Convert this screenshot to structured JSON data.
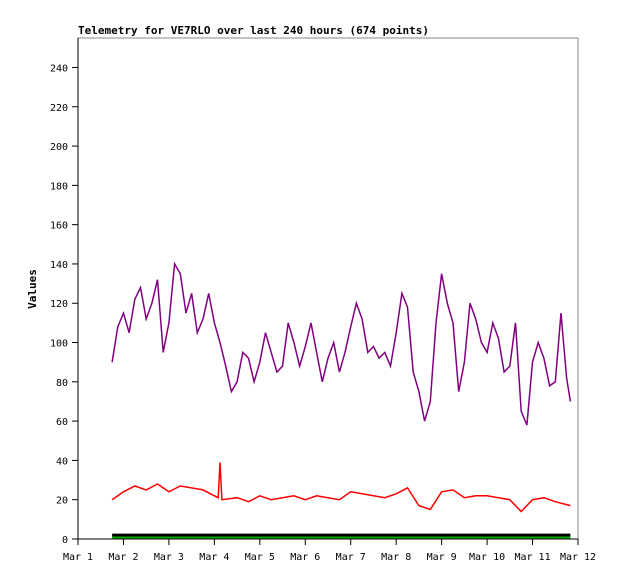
{
  "chart_data": {
    "type": "line",
    "title": "Telemetry for VE7RLO over last 240 hours (674 points)",
    "xlabel": "",
    "ylabel": "Values",
    "xlim": [
      "Mar 1 00:00",
      "Mar 12 00:00"
    ],
    "ylim": [
      0,
      255
    ],
    "x_ticks": [
      "Mar 1",
      "Mar 2",
      "Mar 3",
      "Mar 4",
      "Mar 5",
      "Mar 6",
      "Mar 7",
      "Mar 8",
      "Mar 9",
      "Mar 10",
      "Mar 11",
      "Mar 12"
    ],
    "y_ticks": [
      0,
      20,
      40,
      60,
      80,
      100,
      120,
      140,
      160,
      180,
      200,
      220,
      240
    ],
    "grid": false,
    "legend": "none",
    "series": [
      {
        "color": "#800080",
        "points": [
          [
            "Mar 1 18:00",
            90
          ],
          [
            "Mar 1 21:00",
            108
          ],
          [
            "Mar 2 00:00",
            115
          ],
          [
            "Mar 2 03:00",
            105
          ],
          [
            "Mar 2 06:00",
            122
          ],
          [
            "Mar 2 09:00",
            128
          ],
          [
            "Mar 2 12:00",
            112
          ],
          [
            "Mar 2 15:00",
            120
          ],
          [
            "Mar 2 18:00",
            132
          ],
          [
            "Mar 2 21:00",
            95
          ],
          [
            "Mar 3 00:00",
            110
          ],
          [
            "Mar 3 03:00",
            140
          ],
          [
            "Mar 3 06:00",
            135
          ],
          [
            "Mar 3 09:00",
            115
          ],
          [
            "Mar 3 12:00",
            125
          ],
          [
            "Mar 3 15:00",
            105
          ],
          [
            "Mar 3 18:00",
            112
          ],
          [
            "Mar 3 21:00",
            125
          ],
          [
            "Mar 4 00:00",
            110
          ],
          [
            "Mar 4 03:00",
            100
          ],
          [
            "Mar 4 06:00",
            88
          ],
          [
            "Mar 4 09:00",
            75
          ],
          [
            "Mar 4 12:00",
            80
          ],
          [
            "Mar 4 15:00",
            95
          ],
          [
            "Mar 4 18:00",
            92
          ],
          [
            "Mar 4 21:00",
            80
          ],
          [
            "Mar 5 00:00",
            90
          ],
          [
            "Mar 5 03:00",
            105
          ],
          [
            "Mar 5 06:00",
            95
          ],
          [
            "Mar 5 09:00",
            85
          ],
          [
            "Mar 5 12:00",
            88
          ],
          [
            "Mar 5 15:00",
            110
          ],
          [
            "Mar 5 18:00",
            100
          ],
          [
            "Mar 5 21:00",
            88
          ],
          [
            "Mar 6 00:00",
            98
          ],
          [
            "Mar 6 03:00",
            110
          ],
          [
            "Mar 6 06:00",
            95
          ],
          [
            "Mar 6 09:00",
            80
          ],
          [
            "Mar 6 12:00",
            92
          ],
          [
            "Mar 6 15:00",
            100
          ],
          [
            "Mar 6 18:00",
            85
          ],
          [
            "Mar 6 21:00",
            95
          ],
          [
            "Mar 7 00:00",
            108
          ],
          [
            "Mar 7 03:00",
            120
          ],
          [
            "Mar 7 06:00",
            112
          ],
          [
            "Mar 7 09:00",
            95
          ],
          [
            "Mar 7 12:00",
            98
          ],
          [
            "Mar 7 15:00",
            92
          ],
          [
            "Mar 7 18:00",
            95
          ],
          [
            "Mar 7 21:00",
            88
          ],
          [
            "Mar 8 00:00",
            105
          ],
          [
            "Mar 8 03:00",
            125
          ],
          [
            "Mar 8 06:00",
            118
          ],
          [
            "Mar 8 09:00",
            85
          ],
          [
            "Mar 8 12:00",
            75
          ],
          [
            "Mar 8 15:00",
            60
          ],
          [
            "Mar 8 18:00",
            70
          ],
          [
            "Mar 8 21:00",
            110
          ],
          [
            "Mar 9 00:00",
            135
          ],
          [
            "Mar 9 03:00",
            120
          ],
          [
            "Mar 9 06:00",
            110
          ],
          [
            "Mar 9 09:00",
            75
          ],
          [
            "Mar 9 12:00",
            90
          ],
          [
            "Mar 9 15:00",
            120
          ],
          [
            "Mar 9 18:00",
            112
          ],
          [
            "Mar 9 21:00",
            100
          ],
          [
            "Mar 10 00:00",
            95
          ],
          [
            "Mar 10 03:00",
            110
          ],
          [
            "Mar 10 06:00",
            102
          ],
          [
            "Mar 10 09:00",
            85
          ],
          [
            "Mar 10 12:00",
            88
          ],
          [
            "Mar 10 15:00",
            110
          ],
          [
            "Mar 10 18:00",
            65
          ],
          [
            "Mar 10 21:00",
            58
          ],
          [
            "Mar 11 00:00",
            90
          ],
          [
            "Mar 11 03:00",
            100
          ],
          [
            "Mar 11 06:00",
            92
          ],
          [
            "Mar 11 09:00",
            78
          ],
          [
            "Mar 11 12:00",
            80
          ],
          [
            "Mar 11 15:00",
            115
          ],
          [
            "Mar 11 18:00",
            82
          ],
          [
            "Mar 11 20:00",
            70
          ]
        ]
      },
      {
        "color": "#ff0000",
        "points": [
          [
            "Mar 1 18:00",
            20
          ],
          [
            "Mar 2 00:00",
            24
          ],
          [
            "Mar 2 06:00",
            27
          ],
          [
            "Mar 2 12:00",
            25
          ],
          [
            "Mar 2 18:00",
            28
          ],
          [
            "Mar 3 00:00",
            24
          ],
          [
            "Mar 3 06:00",
            27
          ],
          [
            "Mar 3 12:00",
            26
          ],
          [
            "Mar 3 18:00",
            25
          ],
          [
            "Mar 4 00:00",
            22
          ],
          [
            "Mar 4 02:00",
            21
          ],
          [
            "Mar 4 03:00",
            39
          ],
          [
            "Mar 4 04:00",
            20
          ],
          [
            "Mar 4 12:00",
            21
          ],
          [
            "Mar 4 18:00",
            19
          ],
          [
            "Mar 5 00:00",
            22
          ],
          [
            "Mar 5 06:00",
            20
          ],
          [
            "Mar 5 12:00",
            21
          ],
          [
            "Mar 5 18:00",
            22
          ],
          [
            "Mar 6 00:00",
            20
          ],
          [
            "Mar 6 06:00",
            22
          ],
          [
            "Mar 6 12:00",
            21
          ],
          [
            "Mar 6 18:00",
            20
          ],
          [
            "Mar 7 00:00",
            24
          ],
          [
            "Mar 7 06:00",
            23
          ],
          [
            "Mar 7 12:00",
            22
          ],
          [
            "Mar 7 18:00",
            21
          ],
          [
            "Mar 8 00:00",
            23
          ],
          [
            "Mar 8 06:00",
            26
          ],
          [
            "Mar 8 12:00",
            17
          ],
          [
            "Mar 8 18:00",
            15
          ],
          [
            "Mar 9 00:00",
            24
          ],
          [
            "Mar 9 06:00",
            25
          ],
          [
            "Mar 9 12:00",
            21
          ],
          [
            "Mar 9 18:00",
            22
          ],
          [
            "Mar 10 00:00",
            22
          ],
          [
            "Mar 10 06:00",
            21
          ],
          [
            "Mar 10 12:00",
            20
          ],
          [
            "Mar 10 18:00",
            14
          ],
          [
            "Mar 11 00:00",
            20
          ],
          [
            "Mar 11 06:00",
            21
          ],
          [
            "Mar 11 12:00",
            19
          ],
          [
            "Mar 11 20:00",
            17
          ]
        ]
      },
      {
        "color": "#000000",
        "points": [
          [
            "Mar 1 18:00",
            2
          ],
          [
            "Mar 4 00:00",
            2
          ],
          [
            "Mar 7 00:00",
            2
          ],
          [
            "Mar 10 00:00",
            2
          ],
          [
            "Mar 11 20:00",
            2
          ]
        ]
      },
      {
        "color": "#00aa00",
        "points": [
          [
            "Mar 1 18:00",
            0.5
          ],
          [
            "Mar 11 20:00",
            0.5
          ]
        ]
      }
    ]
  }
}
